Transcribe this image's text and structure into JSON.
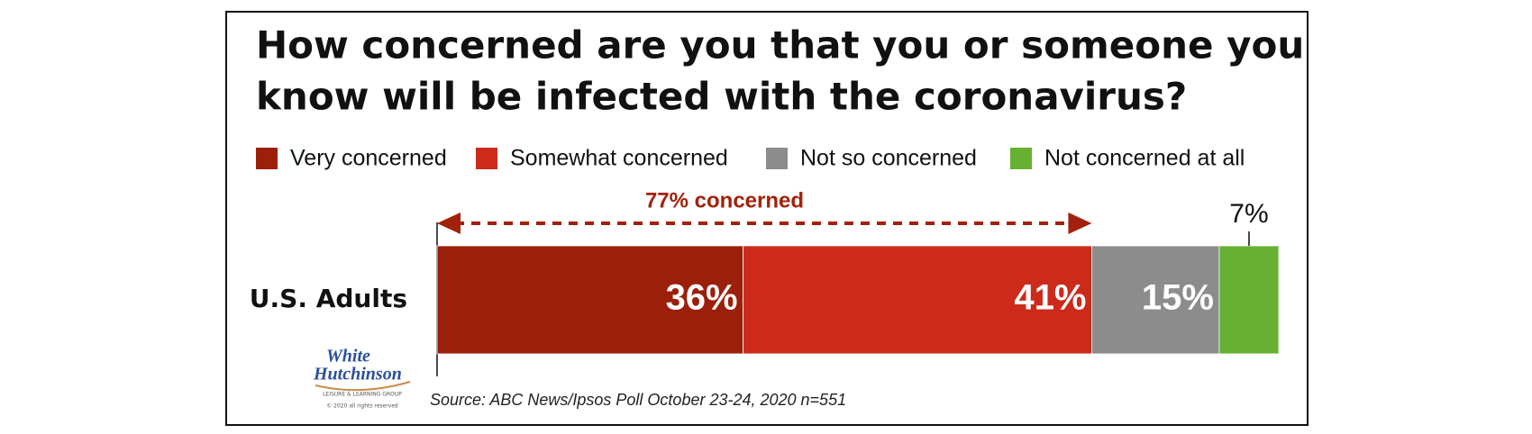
{
  "chart_data": {
    "type": "stacked-bar-horizontal",
    "title": [
      "How concerned are you that you or someone you",
      "know will be infected with the coronavirus?"
    ],
    "categories": [
      "U.S. Adults"
    ],
    "series": [
      {
        "name": "Very concerned",
        "color": "#9b1f0a",
        "values": [
          36
        ],
        "value_labels": [
          "36%"
        ]
      },
      {
        "name": "Somewhat concerned",
        "color": "#cc2a1a",
        "values": [
          41
        ],
        "value_labels": [
          "41%"
        ]
      },
      {
        "name": "Not so concerned",
        "color": "#8c8c8c",
        "values": [
          15
        ],
        "value_labels": [
          "15%"
        ]
      },
      {
        "name": "Not concerned at all",
        "color": "#66b032",
        "values": [
          7
        ],
        "value_labels": [
          "7%"
        ]
      }
    ],
    "annotation": "77% concerned",
    "source": "Source: ABC News/Ipsos Poll October 23-24, 2020 n=551"
  },
  "logo": {
    "line1": "White",
    "line2": "Hutchinson",
    "tagline": "LEISURE & LEARNING GROUP",
    "copyright": "© 2020 all rights reserved"
  }
}
